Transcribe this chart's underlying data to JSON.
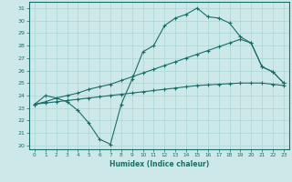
{
  "xlabel": "Humidex (Indice chaleur)",
  "xlim": [
    -0.5,
    23.5
  ],
  "ylim": [
    19.7,
    31.5
  ],
  "xticks": [
    0,
    1,
    2,
    3,
    4,
    5,
    6,
    7,
    8,
    9,
    10,
    11,
    12,
    13,
    14,
    15,
    16,
    17,
    18,
    19,
    20,
    21,
    22,
    23
  ],
  "yticks": [
    20,
    21,
    22,
    23,
    24,
    25,
    26,
    27,
    28,
    29,
    30,
    31
  ],
  "bg_color": "#cce8e8",
  "line_color": "#1a6e6a",
  "grid_color": "#b0d8d8",
  "line1_y": [
    23.3,
    24.0,
    23.8,
    23.5,
    22.8,
    21.8,
    20.5,
    20.1,
    23.3,
    25.3,
    27.5,
    28.0,
    29.6,
    30.2,
    30.5,
    31.0,
    30.3,
    30.2,
    29.8,
    28.7,
    28.2,
    26.3,
    25.9,
    25.0
  ],
  "line2_y": [
    23.3,
    23.5,
    23.8,
    24.0,
    24.2,
    24.5,
    24.7,
    24.9,
    25.2,
    25.5,
    25.8,
    26.1,
    26.4,
    26.7,
    27.0,
    27.3,
    27.6,
    27.9,
    28.2,
    28.5,
    28.2,
    26.3,
    25.9,
    25.0
  ],
  "line3_y": [
    23.3,
    23.4,
    23.5,
    23.6,
    23.7,
    23.8,
    23.9,
    24.0,
    24.1,
    24.2,
    24.3,
    24.4,
    24.5,
    24.6,
    24.7,
    24.8,
    24.85,
    24.9,
    24.95,
    25.0,
    25.0,
    25.0,
    24.9,
    24.8
  ]
}
